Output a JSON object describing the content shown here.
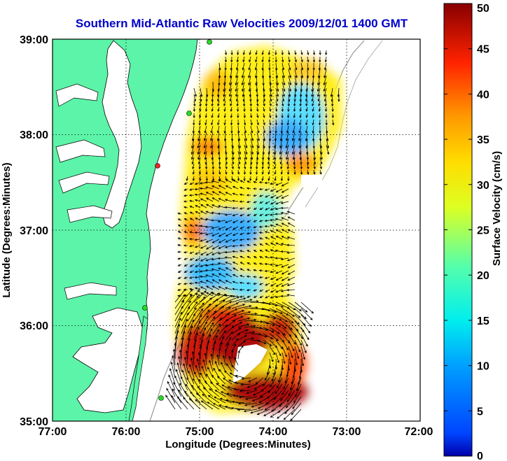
{
  "title": "Southern Mid-Atlantic Raw Velocities 2009/12/01 1400 GMT",
  "x_axis": {
    "label": "Longitude (Degrees:Minutes)",
    "ticks": [
      "77:00",
      "76:00",
      "75:00",
      "74:00",
      "73:00",
      "72:00"
    ]
  },
  "y_axis": {
    "label": "Latitude (Degrees:Minutes)",
    "ticks": [
      "39:00",
      "38:00",
      "37:00",
      "36:00",
      "35:00"
    ]
  },
  "colorbar": {
    "label": "Surface Velocity (cm/s)",
    "ticks": [
      "50",
      "45",
      "40",
      "35",
      "30",
      "25",
      "20",
      "15",
      "10",
      "5",
      "0"
    ],
    "min": 0,
    "max": 50,
    "colormap": "jet"
  },
  "colors": {
    "land": "#5cf4a8",
    "ocean": "#ffffff",
    "title": "#0000cc",
    "station": "#22dd22",
    "station_alert": "#ee2222"
  },
  "map_extent": {
    "lon": [
      -77,
      -72
    ],
    "lat": [
      35,
      39
    ]
  }
}
